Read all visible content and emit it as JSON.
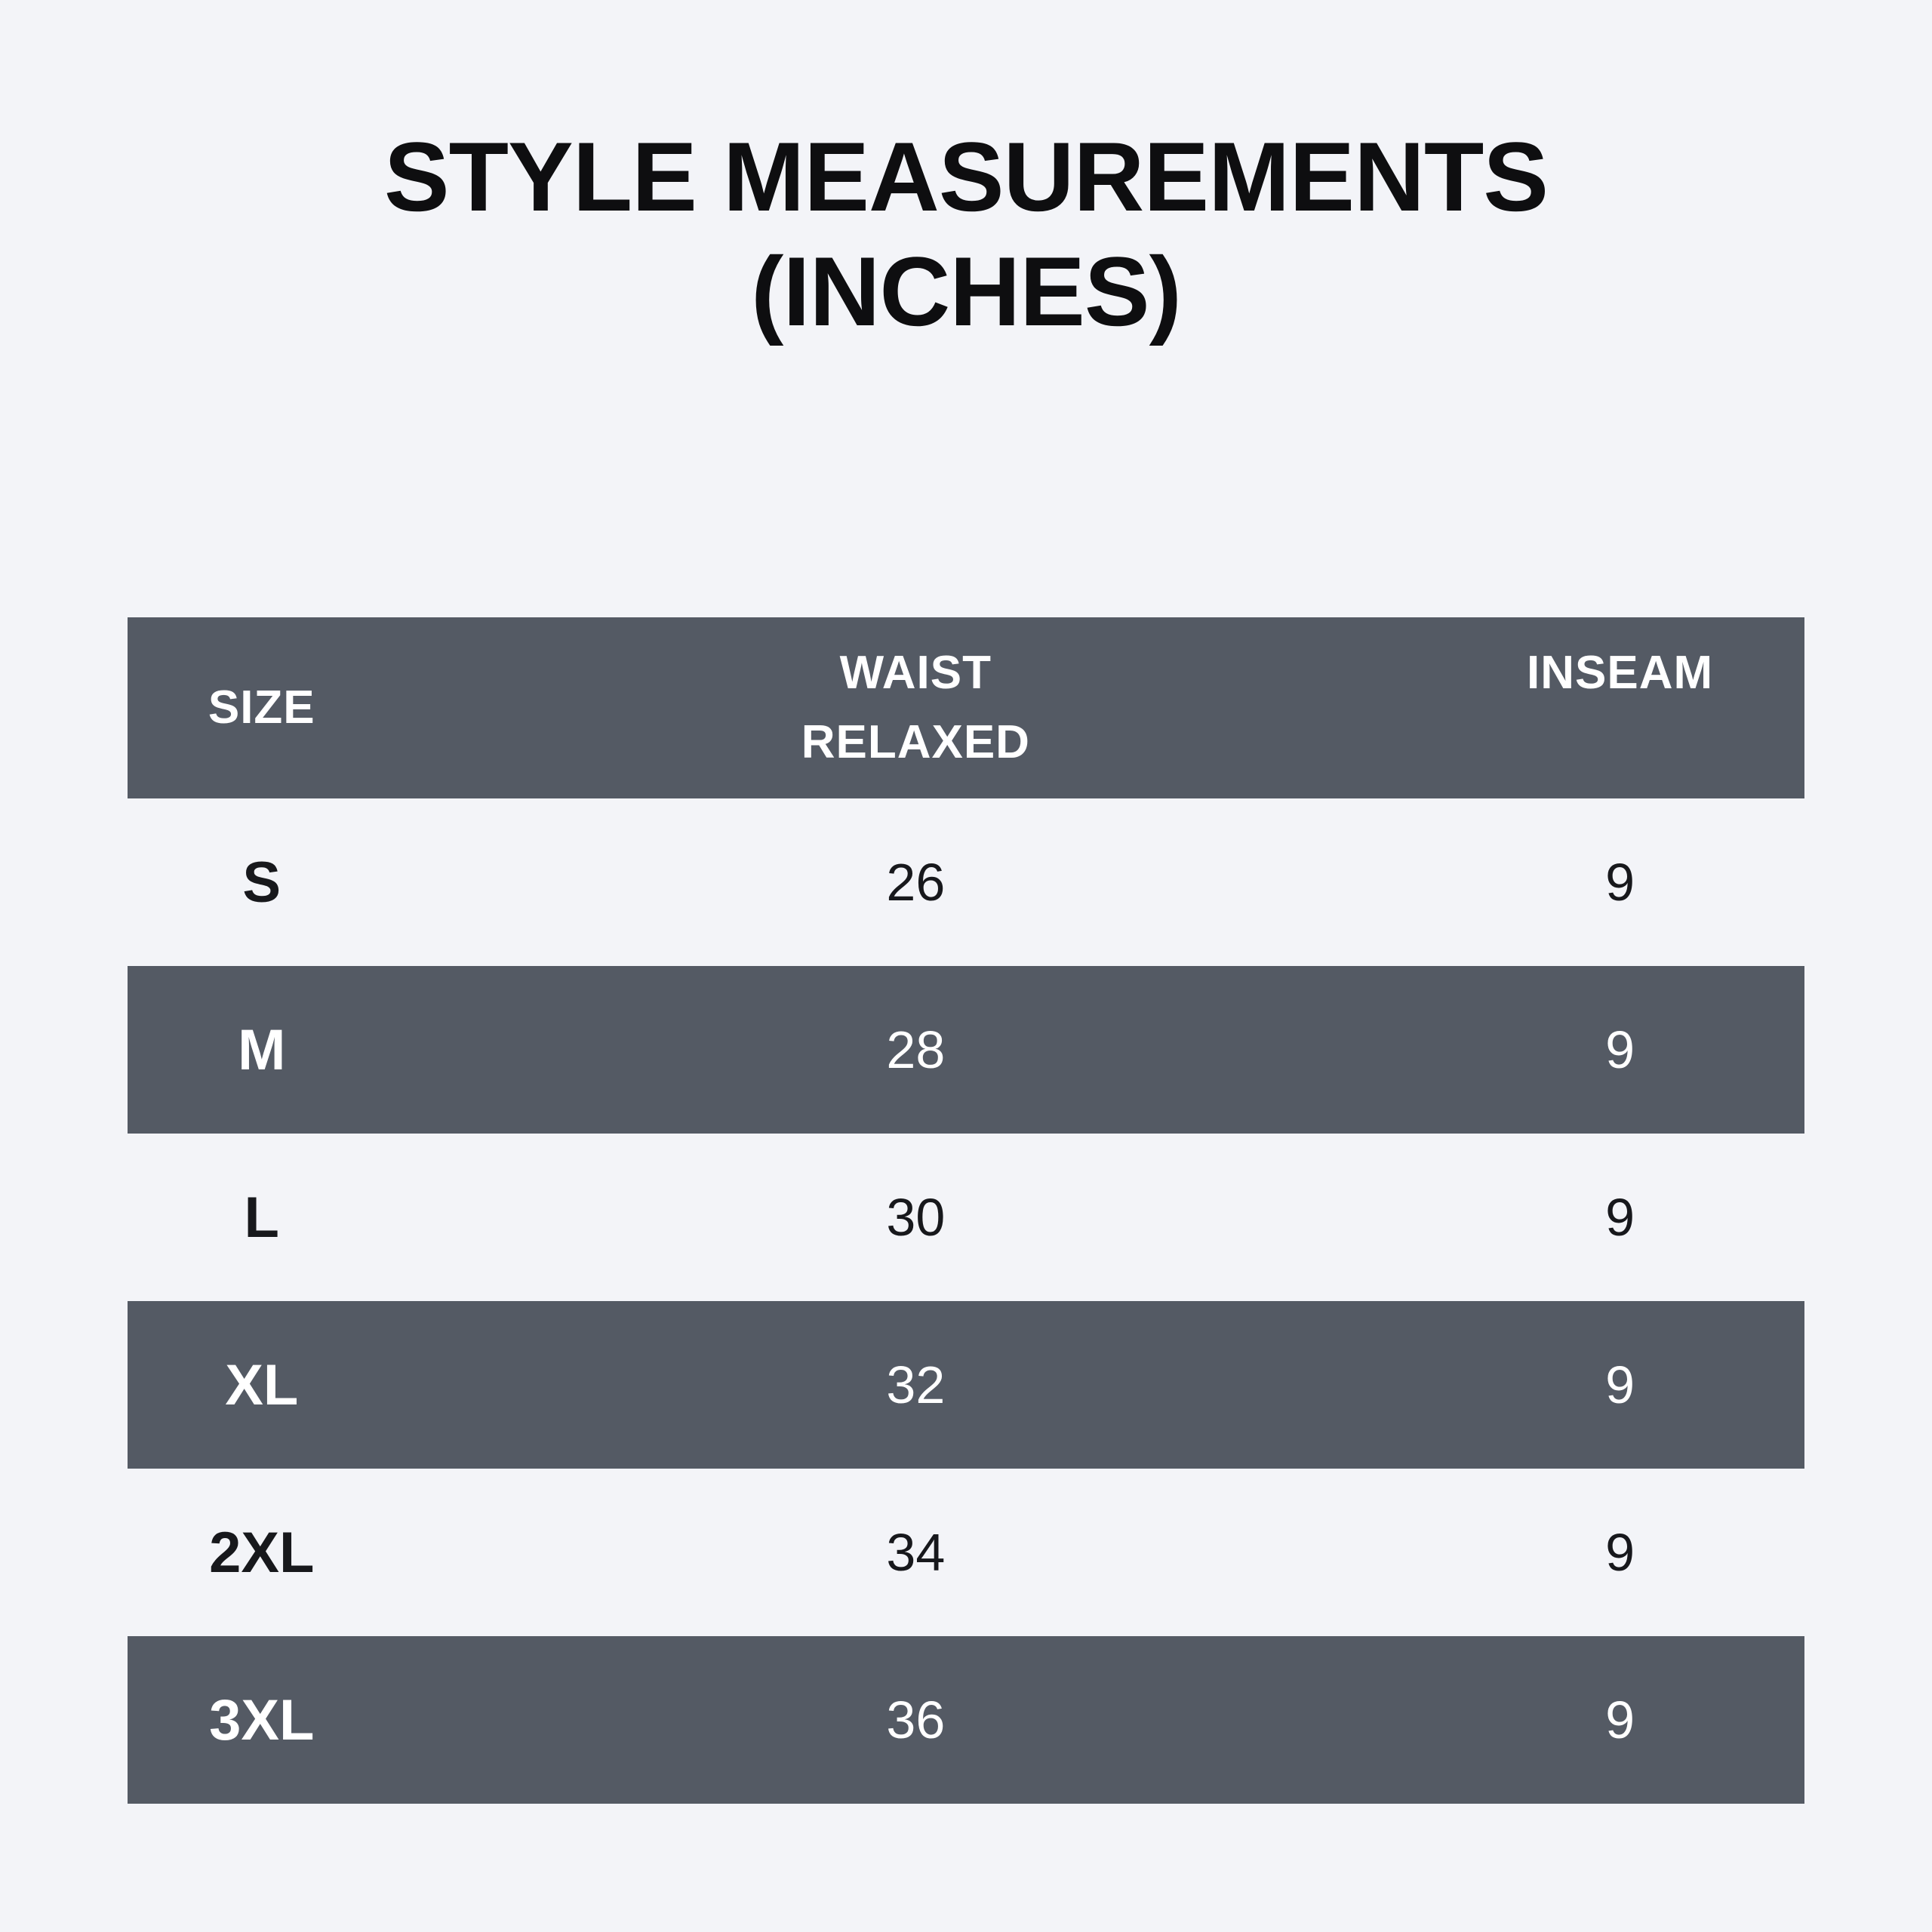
{
  "page": {
    "background": "#f3f4f8"
  },
  "title": {
    "line1": "STYLE MEASUREMENTS",
    "line2": "(INCHES)"
  },
  "table": {
    "header": {
      "size": "SIZE",
      "waist_line1": "WAIST",
      "waist_line2": "RELAXED",
      "inseam": "INSEAM"
    },
    "rows": [
      {
        "size": "S",
        "waist": "26",
        "inseam": "9"
      },
      {
        "size": "M",
        "waist": "28",
        "inseam": "9"
      },
      {
        "size": "L",
        "waist": "30",
        "inseam": "9"
      },
      {
        "size": "XL",
        "waist": "32",
        "inseam": "9"
      },
      {
        "size": "2XL",
        "waist": "34",
        "inseam": "9"
      },
      {
        "size": "3XL",
        "waist": "36",
        "inseam": "9"
      }
    ],
    "colors": {
      "row_dark": "#545a64",
      "row_light": "#f3f4f8",
      "text_on_dark": "#ffffff",
      "text_on_light": "#17181c"
    }
  },
  "chart_data": {
    "type": "table",
    "title": "STYLE MEASUREMENTS (INCHES)",
    "units": "inches",
    "columns": [
      "SIZE",
      "WAIST RELAXED",
      "INSEAM"
    ],
    "rows": [
      [
        "S",
        26,
        9
      ],
      [
        "M",
        28,
        9
      ],
      [
        "L",
        30,
        9
      ],
      [
        "XL",
        32,
        9
      ],
      [
        "2XL",
        34,
        9
      ],
      [
        "3XL",
        36,
        9
      ]
    ]
  }
}
